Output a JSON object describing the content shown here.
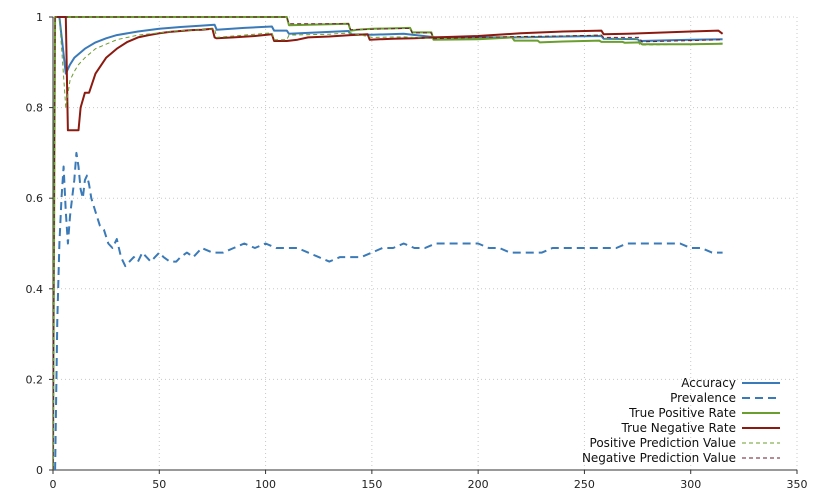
{
  "chart_data": {
    "type": "line",
    "title": "",
    "xlabel": "",
    "ylabel": "",
    "xlim": [
      0,
      350
    ],
    "ylim": [
      0,
      1
    ],
    "x_ticks": [
      0,
      50,
      100,
      150,
      200,
      250,
      300,
      350
    ],
    "y_ticks": [
      0,
      0.2,
      0.4,
      0.6,
      0.8,
      1
    ],
    "x_tick_labels": [
      "0",
      "50",
      "100",
      "150",
      "200",
      "250",
      "300",
      "350"
    ],
    "y_tick_labels": [
      "0",
      "0.2",
      "0.4",
      "0.6",
      "0.8",
      "1"
    ],
    "grid": true,
    "legend_position": "bottom-right",
    "series": [
      {
        "name": "Accuracy",
        "color": "#3a7ab8",
        "style": "solid",
        "x": [
          1,
          3,
          6,
          8,
          10,
          15,
          20,
          25,
          30,
          40,
          50,
          60,
          70,
          76,
          77,
          90,
          103,
          104,
          110,
          111,
          130,
          139,
          140,
          150,
          165,
          180,
          200,
          220,
          240,
          258,
          259,
          275,
          276,
          300,
          315
        ],
        "y": [
          1,
          1,
          0.875,
          0.895,
          0.91,
          0.93,
          0.944,
          0.953,
          0.96,
          0.968,
          0.974,
          0.978,
          0.981,
          0.983,
          0.972,
          0.976,
          0.979,
          0.97,
          0.97,
          0.963,
          0.967,
          0.969,
          0.962,
          0.961,
          0.963,
          0.955,
          0.955,
          0.955,
          0.957,
          0.958,
          0.952,
          0.951,
          0.947,
          0.95,
          0.951
        ]
      },
      {
        "name": "Prevalence",
        "color": "#3a7ab8",
        "style": "dashed",
        "x": [
          1,
          2,
          3,
          4,
          5,
          6,
          7,
          8,
          9,
          10,
          11,
          12,
          13,
          14,
          15,
          16,
          17,
          18,
          20,
          22,
          24,
          26,
          28,
          30,
          32,
          34,
          36,
          38,
          40,
          42,
          44,
          46,
          48,
          50,
          52,
          55,
          58,
          60,
          63,
          66,
          70,
          75,
          80,
          85,
          90,
          95,
          100,
          105,
          110,
          115,
          120,
          125,
          130,
          135,
          140,
          145,
          150,
          155,
          160,
          165,
          170,
          175,
          180,
          185,
          190,
          195,
          200,
          205,
          210,
          215,
          220,
          225,
          230,
          235,
          240,
          245,
          250,
          255,
          260,
          265,
          270,
          275,
          280,
          285,
          290,
          295,
          300,
          305,
          310,
          315
        ],
        "y": [
          0,
          0.33,
          0.5,
          0.6,
          0.67,
          0.57,
          0.5,
          0.56,
          0.6,
          0.64,
          0.7,
          0.67,
          0.62,
          0.6,
          0.64,
          0.65,
          0.63,
          0.6,
          0.57,
          0.54,
          0.53,
          0.5,
          0.49,
          0.51,
          0.47,
          0.45,
          0.46,
          0.47,
          0.46,
          0.48,
          0.47,
          0.46,
          0.47,
          0.48,
          0.47,
          0.46,
          0.46,
          0.47,
          0.48,
          0.47,
          0.49,
          0.48,
          0.48,
          0.49,
          0.5,
          0.49,
          0.5,
          0.49,
          0.49,
          0.49,
          0.48,
          0.47,
          0.46,
          0.47,
          0.47,
          0.47,
          0.48,
          0.49,
          0.49,
          0.5,
          0.49,
          0.49,
          0.5,
          0.5,
          0.5,
          0.5,
          0.5,
          0.49,
          0.49,
          0.48,
          0.48,
          0.48,
          0.48,
          0.49,
          0.49,
          0.49,
          0.49,
          0.49,
          0.49,
          0.49,
          0.5,
          0.5,
          0.5,
          0.5,
          0.5,
          0.5,
          0.49,
          0.49,
          0.48,
          0.48
        ]
      },
      {
        "name": "True Positive Rate",
        "color": "#6a9e2e",
        "style": "solid",
        "x": [
          0,
          1,
          2,
          110,
          111,
          139,
          140,
          142,
          143,
          150,
          168,
          169,
          178,
          179,
          200,
          216,
          217,
          228,
          229,
          240,
          257,
          258,
          268,
          269,
          276,
          277,
          290,
          300,
          315
        ],
        "y": [
          0,
          1,
          1,
          1,
          0.982,
          0.985,
          0.97,
          0.971,
          0.972,
          0.974,
          0.976,
          0.966,
          0.966,
          0.95,
          0.951,
          0.955,
          0.948,
          0.948,
          0.944,
          0.946,
          0.948,
          0.945,
          0.945,
          0.943,
          0.944,
          0.94,
          0.94,
          0.94,
          0.941
        ]
      },
      {
        "name": "True Negative Rate",
        "color": "#8b1a10",
        "style": "solid",
        "x": [
          1,
          6,
          7,
          12,
          13,
          15,
          17,
          20,
          25,
          30,
          35,
          40,
          45,
          50,
          55,
          60,
          65,
          70,
          75,
          76,
          77,
          85,
          95,
          103,
          104,
          110,
          115,
          120,
          130,
          140,
          148,
          149,
          160,
          170,
          180,
          200,
          220,
          240,
          258,
          259,
          270,
          300,
          313,
          315
        ],
        "y": [
          1,
          1,
          0.75,
          0.75,
          0.8,
          0.833,
          0.833,
          0.875,
          0.91,
          0.93,
          0.945,
          0.955,
          0.96,
          0.964,
          0.967,
          0.969,
          0.971,
          0.972,
          0.974,
          0.955,
          0.953,
          0.955,
          0.958,
          0.962,
          0.947,
          0.947,
          0.95,
          0.955,
          0.957,
          0.96,
          0.962,
          0.95,
          0.952,
          0.953,
          0.955,
          0.958,
          0.964,
          0.968,
          0.97,
          0.962,
          0.963,
          0.968,
          0.97,
          0.963
        ]
      },
      {
        "name": "Positive Prediction Value",
        "color": "#6a9e2e",
        "style": "dashed",
        "x": [
          1,
          3,
          6,
          7,
          8,
          10,
          12,
          15,
          20,
          25,
          30,
          40,
          50,
          60,
          70,
          76,
          77,
          85,
          95,
          103,
          104,
          110,
          111,
          130,
          140,
          150,
          165,
          180,
          200,
          220,
          240,
          258,
          259,
          275,
          276,
          300,
          315
        ],
        "y": [
          1,
          1,
          0.8,
          0.83,
          0.86,
          0.88,
          0.895,
          0.91,
          0.93,
          0.94,
          0.95,
          0.96,
          0.965,
          0.97,
          0.972,
          0.974,
          0.955,
          0.958,
          0.962,
          0.965,
          0.95,
          0.95,
          0.96,
          0.962,
          0.965,
          0.955,
          0.956,
          0.952,
          0.953,
          0.955,
          0.958,
          0.96,
          0.953,
          0.952,
          0.938,
          0.94,
          0.942
        ]
      },
      {
        "name": "Negative Prediction Value",
        "color": "#6b1a2e",
        "style": "dashed",
        "x": [
          0,
          1,
          2,
          110,
          111,
          139,
          140,
          150,
          168,
          169,
          178,
          179,
          200,
          220,
          240,
          258,
          259,
          276,
          277,
          300,
          315
        ],
        "y": [
          0,
          1,
          1,
          1,
          0.985,
          0.985,
          0.972,
          0.973,
          0.975,
          0.965,
          0.965,
          0.952,
          0.955,
          0.957,
          0.958,
          0.96,
          0.955,
          0.955,
          0.945,
          0.948,
          0.95
        ]
      }
    ]
  }
}
